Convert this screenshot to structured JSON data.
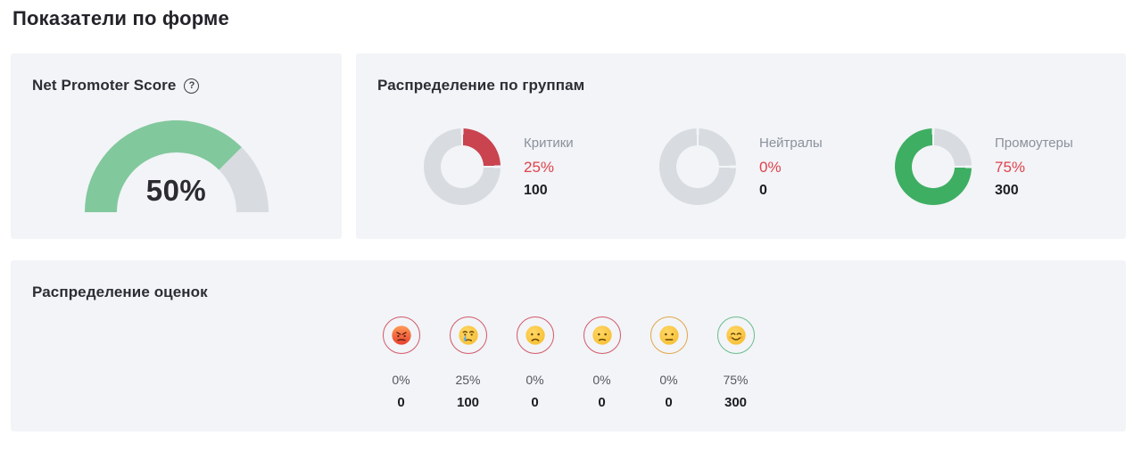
{
  "page": {
    "title": "Показатели по форме"
  },
  "colors": {
    "card_bg": "#f2f4f7",
    "gauge_fill": "#82c89d",
    "gauge_track": "#d8dbe0",
    "donut_red": "#c9444f",
    "donut_green": "#3eae62",
    "donut_gray": "#d8dbdf",
    "percent_red": "#e0424c",
    "label_gray": "#8b919c",
    "count_dark": "#1d1d23"
  },
  "nps": {
    "title": "Net Promoter Score",
    "help_icon": "?",
    "value": "50%",
    "gauge": {
      "fill_deg": 135,
      "total_deg": 180,
      "fill_color": "#82c89d",
      "track_color": "#d8dbe0"
    }
  },
  "groups": {
    "title": "Распределение по группам",
    "items": [
      {
        "key": "critics",
        "label": "Критики",
        "percent": "25%",
        "count": "100",
        "segments": [
          {
            "from": 2,
            "to": 88,
            "color": "#c9444f"
          },
          {
            "from": 92,
            "to": 358,
            "color": "#d8dbdf"
          }
        ]
      },
      {
        "key": "neutrals",
        "label": "Нейтралы",
        "percent": "0%",
        "count": "0",
        "segments": [
          {
            "from": 2,
            "to": 88,
            "color": "#d8dbdf"
          },
          {
            "from": 92,
            "to": 358,
            "color": "#d8dbdf"
          }
        ]
      },
      {
        "key": "promoters",
        "label": "Промоутеры",
        "percent": "75%",
        "count": "300",
        "segments": [
          {
            "from": 2,
            "to": 88,
            "color": "#d8dbdf"
          },
          {
            "from": 92,
            "to": 358,
            "color": "#3eae62"
          }
        ]
      }
    ]
  },
  "ratings": {
    "title": "Распределение оценок",
    "items": [
      {
        "face": "angry",
        "ring_color": "#d2596a",
        "percent": "0%",
        "count": "0"
      },
      {
        "face": "crying",
        "ring_color": "#d2596a",
        "percent": "25%",
        "count": "100"
      },
      {
        "face": "frown",
        "ring_color": "#d2596a",
        "percent": "0%",
        "count": "0"
      },
      {
        "face": "slight-frown",
        "ring_color": "#d2596a",
        "percent": "0%",
        "count": "0"
      },
      {
        "face": "neutral",
        "ring_color": "#e2a64b",
        "percent": "0%",
        "count": "0"
      },
      {
        "face": "smile",
        "ring_color": "#69bd8d",
        "percent": "75%",
        "count": "300"
      }
    ]
  },
  "chart_data": [
    {
      "type": "gauge",
      "title": "Net Promoter Score",
      "value_label": "50%",
      "value": 50,
      "range": [
        -100,
        100
      ],
      "arc_fill_fraction": 0.75
    },
    {
      "type": "pie",
      "title": "Распределение по группам",
      "categories": [
        "Критики",
        "Нейтралы",
        "Промоутеры"
      ],
      "percents": [
        25,
        0,
        75
      ],
      "counts": [
        100,
        0,
        300
      ]
    },
    {
      "type": "bar",
      "title": "Распределение оценок",
      "categories": [
        "angry",
        "crying",
        "frowning",
        "slightly-frowning",
        "neutral",
        "smiling"
      ],
      "percents": [
        0,
        25,
        0,
        0,
        0,
        75
      ],
      "counts": [
        0,
        100,
        0,
        0,
        0,
        300
      ]
    }
  ]
}
